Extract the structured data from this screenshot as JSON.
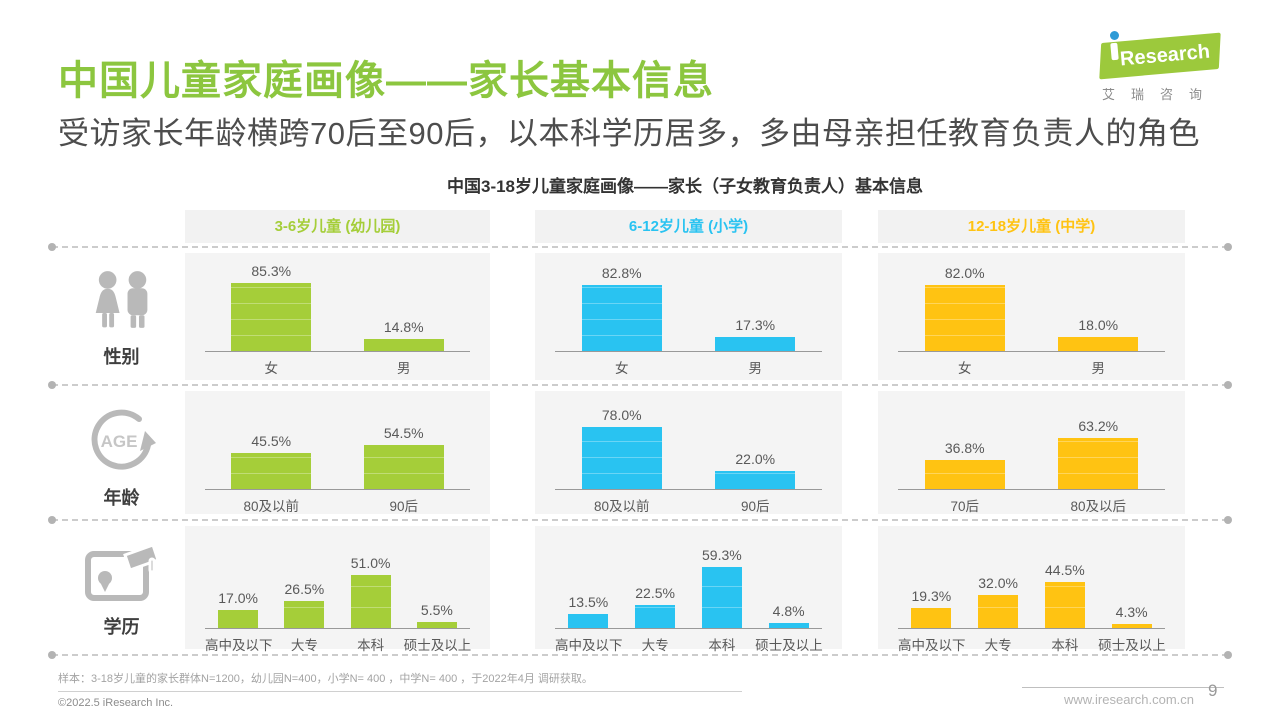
{
  "page": {
    "title": "中国儿童家庭画像——家长基本信息",
    "subtitle": "受访家长年龄横跨70后至90后，以本科学历居多，多由母亲担任教育负责人的角色",
    "footnote": "样本：3-18岁儿童的家长群体N=1200，幼儿园N=400，小学N= 400 ，中学N= 400 ，于2022年4月 调研获取。",
    "copyright": "©2022.5 iResearch Inc.",
    "website": "www.iresearch.com.cn",
    "page_number": "9"
  },
  "logo": {
    "brand": "iResearch",
    "research_text": "Research",
    "brand_cn": "艾瑞咨询"
  },
  "colors": {
    "title_green": "#8cc63f",
    "green": "#a5ce39",
    "blue": "#29c3f1",
    "yellow": "#ffc312",
    "icon_gray": "#b9b9b9",
    "panel_bg": "#f4f4f4"
  },
  "chart_data": {
    "type": "bar",
    "title": "中国3-18岁儿童家庭画像——家长（子女教育负责人）基本信息",
    "unit": "%",
    "ylim": [
      0,
      100
    ],
    "grid": false,
    "groups": [
      {
        "label": "3-6岁儿童 (幼儿园)",
        "color": "#a5ce39"
      },
      {
        "label": "6-12岁儿童 (小学)",
        "color": "#29c3f1"
      },
      {
        "label": "12-18岁儿童 (中学)",
        "color": "#ffc312"
      }
    ],
    "rows": [
      {
        "label": "性别",
        "icon": "gender-icon",
        "charts": [
          {
            "categories": [
              "女",
              "男"
            ],
            "values": [
              85.3,
              14.8
            ]
          },
          {
            "categories": [
              "女",
              "男"
            ],
            "values": [
              82.8,
              17.3
            ]
          },
          {
            "categories": [
              "女",
              "男"
            ],
            "values": [
              82.0,
              18.0
            ]
          }
        ]
      },
      {
        "label": "年龄",
        "icon": "age-icon",
        "charts": [
          {
            "categories": [
              "80及以前",
              "90后"
            ],
            "values": [
              45.5,
              54.5
            ]
          },
          {
            "categories": [
              "80及以前",
              "90后"
            ],
            "values": [
              78.0,
              22.0
            ]
          },
          {
            "categories": [
              "70后",
              "80及以后"
            ],
            "values": [
              36.8,
              63.2
            ]
          }
        ]
      },
      {
        "label": "学历",
        "icon": "education-icon",
        "charts": [
          {
            "categories": [
              "高中及以下",
              "大专",
              "本科",
              "硕士及以上"
            ],
            "values": [
              17.0,
              26.5,
              51.0,
              5.5
            ]
          },
          {
            "categories": [
              "高中及以下",
              "大专",
              "本科",
              "硕士及以上"
            ],
            "values": [
              13.5,
              22.5,
              59.3,
              4.8
            ]
          },
          {
            "categories": [
              "高中及以下",
              "大专",
              "本科",
              "硕士及以上"
            ],
            "values": [
              19.3,
              32.0,
              44.5,
              4.3
            ]
          }
        ]
      }
    ]
  }
}
